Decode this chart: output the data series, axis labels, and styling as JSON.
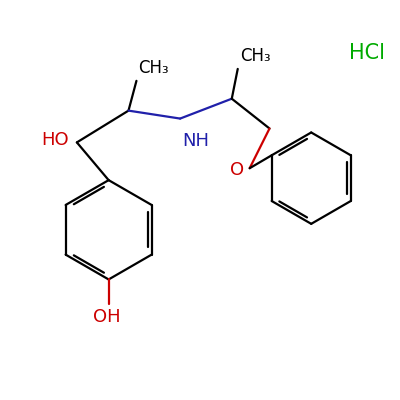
{
  "background_color": "#ffffff",
  "bond_color": "#000000",
  "oh_color": "#cc0000",
  "nh_color": "#2020aa",
  "o_color": "#cc0000",
  "hcl_color": "#00aa00",
  "hcl_text": "HCl",
  "ch3_left": "CH₃",
  "ch3_right": "CH₃",
  "ho_label": "HO",
  "nh_label": "NH",
  "oh_bottom": "OH",
  "o_label": "O"
}
